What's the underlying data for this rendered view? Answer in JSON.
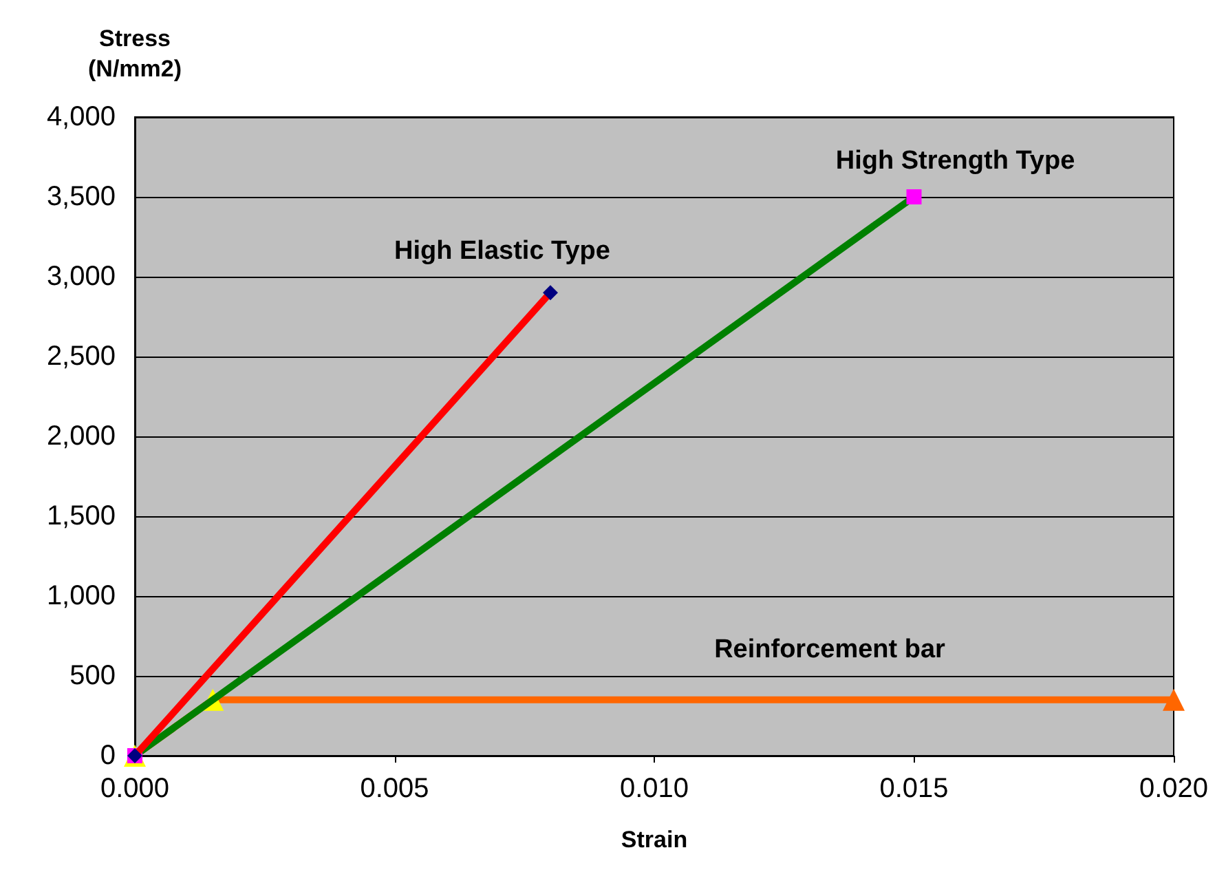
{
  "chart_data": {
    "type": "line",
    "xlabel": "Strain",
    "ylabel": "Stress (N/mm2)",
    "xlim": [
      0,
      0.02
    ],
    "xticks": [
      {
        "value": 0,
        "label": "0.000"
      },
      {
        "value": 0.005,
        "label": "0.005"
      },
      {
        "value": 0.01,
        "label": "0.010"
      },
      {
        "value": 0.015,
        "label": "0.015"
      },
      {
        "value": 0.02,
        "label": "0.020"
      }
    ],
    "ylim": [
      0,
      4000
    ],
    "yticks": [
      {
        "value": 0,
        "label": "0"
      },
      {
        "value": 500,
        "label": "500"
      },
      {
        "value": 1000,
        "label": "1,000"
      },
      {
        "value": 1500,
        "label": "1,500"
      },
      {
        "value": 2000,
        "label": "2,000"
      },
      {
        "value": 2500,
        "label": "2,500"
      },
      {
        "value": 3000,
        "label": "3,000"
      },
      {
        "value": 3500,
        "label": "3,500"
      },
      {
        "value": 4000,
        "label": "4,000"
      }
    ],
    "grid": "y",
    "legend": false,
    "series": [
      {
        "name": "Reinforcement bar",
        "color": "#ff6600",
        "marker": "triangle",
        "colors": [
          "#ffff00",
          "#ffff00",
          "#ff6600"
        ],
        "x": [
          0,
          0.0015,
          0.02
        ],
        "values": [
          0,
          350,
          350
        ]
      },
      {
        "name": "High Strength Type",
        "color": "#008000",
        "marker": "square",
        "colors": [
          "#ff00ff",
          "#ff00ff"
        ],
        "x": [
          0,
          0.015
        ],
        "values": [
          0,
          3500
        ]
      },
      {
        "name": "High Elastic Type",
        "color": "#ff0000",
        "marker": "diamond",
        "colors": [
          "#000080",
          "#000080"
        ],
        "x": [
          0,
          0.008
        ],
        "values": [
          0,
          2900
        ]
      }
    ]
  }
}
